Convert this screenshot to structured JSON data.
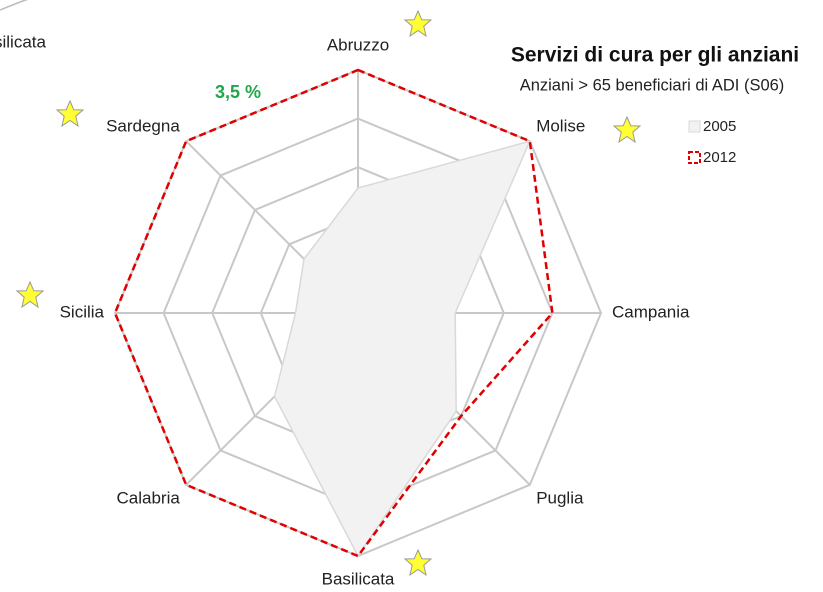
{
  "chart_data": {
    "type": "radar",
    "title": "Servizi di cura per gli anziani",
    "subtitle": "Anziani > 65 beneficiari di ADI (S06)",
    "annotation": "3,5 %",
    "cropped_label": "silicata",
    "categories": [
      "Abruzzo",
      "Molise",
      "Campania",
      "Puglia",
      "Basilicata",
      "Calabria",
      "Sicilia",
      "Sardegna"
    ],
    "rlim": [
      0,
      3.5
    ],
    "rticks": [
      0.7,
      1.4,
      2.1,
      2.8,
      3.5
    ],
    "series": [
      {
        "name": "2005",
        "color": "#d9d9d9",
        "values": [
          1.8,
          3.5,
          1.4,
          2.0,
          3.5,
          1.7,
          0.9,
          1.1
        ]
      },
      {
        "name": "2012",
        "color": "#e00000",
        "values": [
          3.5,
          3.5,
          2.8,
          2.1,
          3.5,
          3.5,
          3.5,
          3.5
        ]
      }
    ]
  }
}
